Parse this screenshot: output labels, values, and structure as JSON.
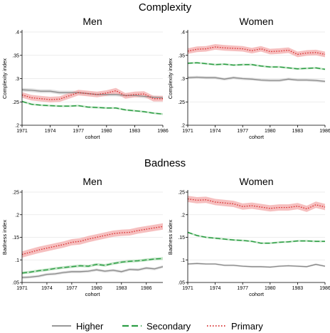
{
  "sections": [
    {
      "title": "Complexity"
    },
    {
      "title": "Badness"
    }
  ],
  "legend": [
    {
      "label": "Higher",
      "color": "#8a8a8a",
      "style": "solid"
    },
    {
      "label": "Secondary",
      "color": "#2e9e46",
      "style": "dashed"
    },
    {
      "label": "Primary",
      "color": "#d62828",
      "style": "dotted"
    }
  ],
  "colors": {
    "higher_band": "#d9d9d9",
    "secondary_band": "#b8e0bd",
    "primary_band": "#f4b4b4"
  },
  "chart_data": [
    {
      "type": "line",
      "title": "Men",
      "section": "Complexity",
      "xlabel": "cohort",
      "ylabel": "Complexity index",
      "ylim": [
        0.2,
        0.4
      ],
      "yticks": [
        0.2,
        0.25,
        0.3,
        0.35,
        0.4
      ],
      "ytick_labels": [
        ".2",
        ".25",
        ".3",
        ".35",
        ".4"
      ],
      "xlim": [
        1971,
        1986
      ],
      "xticks": [
        1971,
        1974,
        1977,
        1980,
        1983,
        1986
      ],
      "x": [
        1971,
        1972,
        1973,
        1974,
        1975,
        1976,
        1977,
        1978,
        1979,
        1980,
        1981,
        1982,
        1983,
        1984,
        1985,
        1986
      ],
      "band_halfwidth": [
        0.004,
        0.002,
        0.006
      ],
      "series": [
        {
          "name": "Higher",
          "values": [
            0.276,
            0.275,
            0.273,
            0.273,
            0.27,
            0.27,
            0.27,
            0.268,
            0.266,
            0.266,
            0.266,
            0.264,
            0.264,
            0.262,
            0.26,
            0.259
          ]
        },
        {
          "name": "Secondary",
          "values": [
            0.251,
            0.245,
            0.243,
            0.242,
            0.241,
            0.241,
            0.242,
            0.239,
            0.238,
            0.237,
            0.237,
            0.233,
            0.231,
            0.229,
            0.226,
            0.224
          ]
        },
        {
          "name": "Primary",
          "values": [
            0.265,
            0.259,
            0.257,
            0.255,
            0.256,
            0.263,
            0.27,
            0.268,
            0.266,
            0.269,
            0.274,
            0.263,
            0.266,
            0.267,
            0.257,
            0.257
          ]
        }
      ]
    },
    {
      "type": "line",
      "title": "Women",
      "section": "Complexity",
      "xlabel": "cohort",
      "ylabel": "Complexity index",
      "ylim": [
        0.2,
        0.4
      ],
      "yticks": [
        0.2,
        0.25,
        0.3,
        0.35,
        0.4
      ],
      "ytick_labels": [
        ".2",
        ".25",
        ".3",
        ".35",
        ".4"
      ],
      "xlim": [
        1971,
        1986
      ],
      "xticks": [
        1971,
        1974,
        1977,
        1980,
        1983,
        1986
      ],
      "x": [
        1971,
        1972,
        1973,
        1974,
        1975,
        1976,
        1977,
        1978,
        1979,
        1980,
        1981,
        1982,
        1983,
        1984,
        1985,
        1986
      ],
      "band_halfwidth": [
        0.003,
        0.002,
        0.006
      ],
      "series": [
        {
          "name": "Higher",
          "values": [
            0.302,
            0.303,
            0.302,
            0.302,
            0.299,
            0.302,
            0.3,
            0.299,
            0.297,
            0.296,
            0.296,
            0.299,
            0.297,
            0.297,
            0.296,
            0.294
          ]
        },
        {
          "name": "Secondary",
          "values": [
            0.333,
            0.334,
            0.332,
            0.33,
            0.331,
            0.329,
            0.33,
            0.33,
            0.327,
            0.325,
            0.325,
            0.323,
            0.321,
            0.322,
            0.323,
            0.32
          ]
        },
        {
          "name": "Primary",
          "values": [
            0.359,
            0.363,
            0.364,
            0.368,
            0.366,
            0.365,
            0.364,
            0.36,
            0.364,
            0.358,
            0.359,
            0.361,
            0.352,
            0.355,
            0.356,
            0.352
          ]
        }
      ]
    },
    {
      "type": "line",
      "title": "Men",
      "section": "Badness",
      "xlabel": "cohort",
      "ylabel": "Badness index",
      "ylim": [
        0.05,
        0.25
      ],
      "yticks": [
        0.05,
        0.1,
        0.15,
        0.2,
        0.25
      ],
      "ytick_labels": [
        ".05",
        ".1",
        ".15",
        ".2",
        ".25"
      ],
      "xlim": [
        1971,
        1988
      ],
      "xticks": [
        1971,
        1974,
        1977,
        1980,
        1983,
        1986
      ],
      "x": [
        1971,
        1972,
        1973,
        1974,
        1975,
        1976,
        1977,
        1978,
        1979,
        1980,
        1981,
        1982,
        1983,
        1984,
        1985,
        1986,
        1987,
        1988
      ],
      "band_halfwidth": [
        0.003,
        0.003,
        0.007
      ],
      "series": [
        {
          "name": "Higher",
          "values": [
            0.061,
            0.062,
            0.064,
            0.068,
            0.069,
            0.072,
            0.074,
            0.074,
            0.075,
            0.078,
            0.075,
            0.077,
            0.074,
            0.079,
            0.078,
            0.082,
            0.08,
            0.085
          ]
        },
        {
          "name": "Secondary",
          "values": [
            0.071,
            0.073,
            0.076,
            0.078,
            0.081,
            0.083,
            0.085,
            0.087,
            0.086,
            0.09,
            0.088,
            0.092,
            0.095,
            0.097,
            0.098,
            0.1,
            0.102,
            0.103
          ]
        },
        {
          "name": "Primary",
          "values": [
            0.112,
            0.117,
            0.122,
            0.126,
            0.13,
            0.134,
            0.139,
            0.141,
            0.146,
            0.15,
            0.154,
            0.158,
            0.16,
            0.161,
            0.165,
            0.168,
            0.171,
            0.174
          ]
        }
      ]
    },
    {
      "type": "line",
      "title": "Women",
      "section": "Badness",
      "xlabel": "cohort",
      "ylabel": "Badness index",
      "ylim": [
        0.05,
        0.25
      ],
      "yticks": [
        0.05,
        0.1,
        0.15,
        0.2,
        0.25
      ],
      "ytick_labels": [
        ".05",
        ".1",
        ".15",
        ".2",
        ".25"
      ],
      "xlim": [
        1971,
        1986
      ],
      "xticks": [
        1971,
        1974,
        1977,
        1980,
        1983,
        1986
      ],
      "x": [
        1971,
        1972,
        1973,
        1974,
        1975,
        1976,
        1977,
        1978,
        1979,
        1980,
        1981,
        1982,
        1983,
        1984,
        1985,
        1986
      ],
      "band_halfwidth": [
        0.002,
        0.002,
        0.007
      ],
      "series": [
        {
          "name": "Higher",
          "values": [
            0.091,
            0.092,
            0.091,
            0.091,
            0.088,
            0.088,
            0.086,
            0.085,
            0.085,
            0.084,
            0.086,
            0.087,
            0.086,
            0.085,
            0.09,
            0.086
          ]
        },
        {
          "name": "Secondary",
          "values": [
            0.161,
            0.154,
            0.15,
            0.148,
            0.146,
            0.144,
            0.143,
            0.141,
            0.137,
            0.137,
            0.139,
            0.14,
            0.142,
            0.142,
            0.141,
            0.141
          ]
        },
        {
          "name": "Primary",
          "values": [
            0.235,
            0.232,
            0.233,
            0.228,
            0.226,
            0.224,
            0.218,
            0.22,
            0.217,
            0.214,
            0.216,
            0.216,
            0.219,
            0.213,
            0.222,
            0.217
          ]
        }
      ]
    }
  ]
}
